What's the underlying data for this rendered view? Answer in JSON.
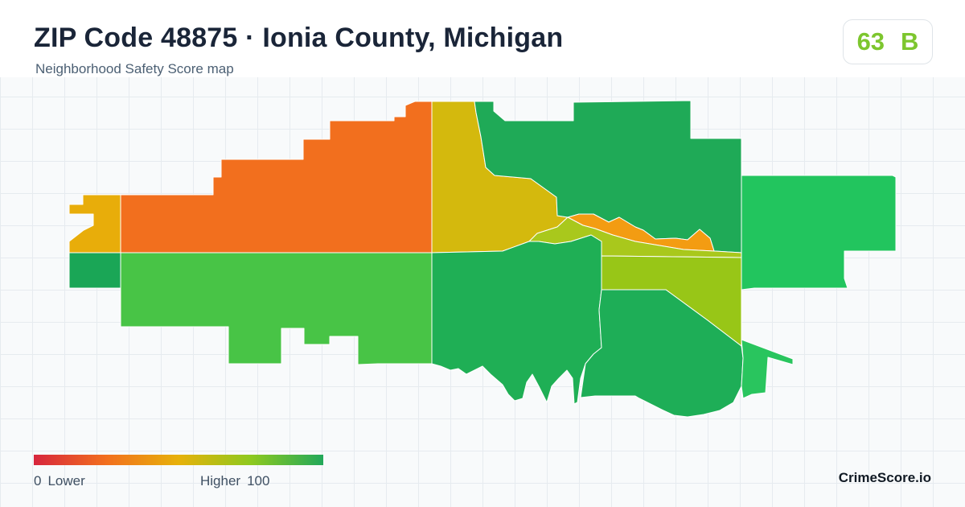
{
  "header": {
    "title": "ZIP Code 48875 · Ionia County, Michigan",
    "subtitle": "Neighborhood Safety Score map"
  },
  "score": {
    "value": "63",
    "grade": "B",
    "color": "#7dc62e"
  },
  "legend": {
    "min": "0",
    "min_label": "Lower",
    "max_label": "Higher",
    "max": "100",
    "colors": [
      "#d7263d",
      "#f26f1e",
      "#e7b10a",
      "#8ec91f",
      "#22a85a"
    ]
  },
  "brand": "CrimeScore.io",
  "map": {
    "regions": [
      {
        "name": "region-northwest-west",
        "color": "#f26f1e"
      },
      {
        "name": "region-far-west-north",
        "color": "#e8ad0a"
      },
      {
        "name": "region-north-center",
        "color": "#d4b90d"
      },
      {
        "name": "region-northeast",
        "color": "#1faa57"
      },
      {
        "name": "region-east",
        "color": "#22c55e"
      },
      {
        "name": "region-river-band-orange",
        "color": "#f39c12"
      },
      {
        "name": "region-river-band-yellowgreen",
        "color": "#a9c81c"
      },
      {
        "name": "region-far-west-south",
        "color": "#1aa656"
      },
      {
        "name": "region-southwest",
        "color": "#48c446"
      },
      {
        "name": "region-south-center",
        "color": "#1faf55"
      },
      {
        "name": "region-east-middle",
        "color": "#98c617"
      },
      {
        "name": "region-southeast",
        "color": "#1eae57"
      },
      {
        "name": "region-southeast-tip",
        "color": "#29c55e"
      }
    ]
  }
}
